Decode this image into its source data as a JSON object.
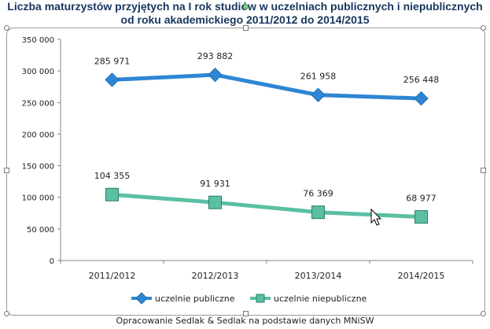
{
  "title": {
    "line1": "Liczba maturzystów przyjętych na I rok studiów w uczelniach publicznych i niepublicznych",
    "line2": "od roku akademickiego 2011/2012 do 2014/2015"
  },
  "caption": "Opracowanie Sedlak & Sedlak na podstawie danych MNiSW",
  "colors": {
    "public": "#2e86d4",
    "private": "#5abfa3",
    "axis": "#868686",
    "text": "#222222"
  },
  "chart_data": {
    "type": "line",
    "categories": [
      "2011/2012",
      "2012/2013",
      "2013/2014",
      "2014/2015"
    ],
    "ylim": [
      0,
      350000
    ],
    "yticks": [
      0,
      50000,
      100000,
      150000,
      200000,
      250000,
      300000,
      350000
    ],
    "ytick_labels": [
      "0",
      "50 000",
      "100 000",
      "150 000",
      "200 000",
      "250 000",
      "300 000",
      "350 000"
    ],
    "series": [
      {
        "name": "uczelnie publiczne",
        "values": [
          285971,
          293882,
          261958,
          256448
        ],
        "labels": [
          "285 971",
          "293 882",
          "261 958",
          "256 448"
        ],
        "marker": "diamond"
      },
      {
        "name": "uczelnie niepubliczne",
        "values": [
          104355,
          91931,
          76369,
          68977
        ],
        "labels": [
          "104 355",
          "91 931",
          "76 369",
          "68 977"
        ],
        "marker": "square"
      }
    ],
    "legend_position": "bottom",
    "grid": false
  }
}
